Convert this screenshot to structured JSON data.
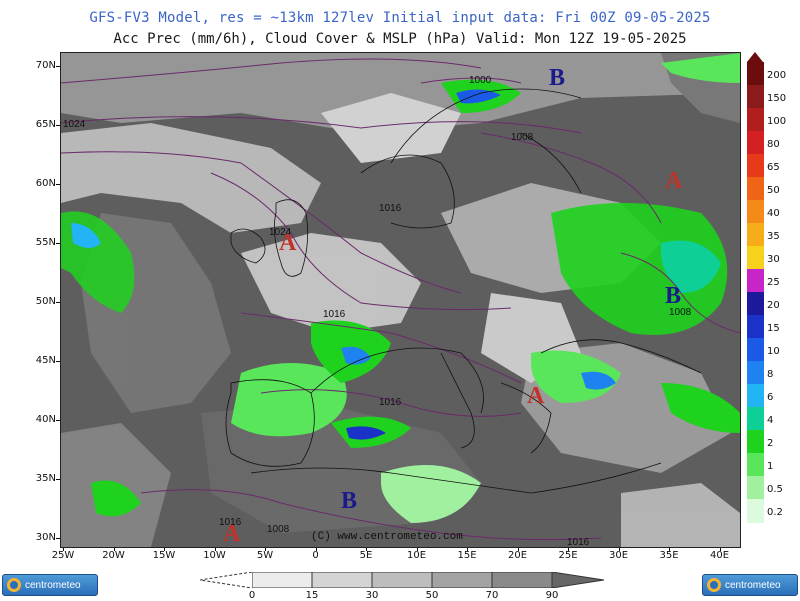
{
  "header": {
    "line1": "GFS-FV3 Model, res = ~13km 127lev   Initial input data: Fri 00Z 09-05-2025",
    "line2": "Acc Prec (mm/6h), Cloud Cover & MSLP (hPa)  Valid: Mon 12Z 19-05-2025"
  },
  "map": {
    "lat_labels": [
      "70N",
      "65N",
      "60N",
      "55N",
      "50N",
      "45N",
      "40N",
      "35N",
      "30N"
    ],
    "lon_labels": [
      "25W",
      "20W",
      "15W",
      "10W",
      "5W",
      "0",
      "5E",
      "10E",
      "15E",
      "20E",
      "25E",
      "30E",
      "35E",
      "40E"
    ],
    "isobar_labels": [
      "1000",
      "1008",
      "1016",
      "1024",
      "1016",
      "1016",
      "1008",
      "1016",
      "1008",
      "1016"
    ],
    "pressure_centers": [
      {
        "letter": "B",
        "color": "#1a1a8c",
        "kind": "low"
      },
      {
        "letter": "A",
        "color": "#c0322a",
        "kind": "high"
      },
      {
        "letter": "A",
        "color": "#c0322a",
        "kind": "high"
      },
      {
        "letter": "B",
        "color": "#1a1a8c",
        "kind": "low"
      },
      {
        "letter": "A",
        "color": "#c0322a",
        "kind": "high"
      },
      {
        "letter": "B",
        "color": "#1a1a8c",
        "kind": "low"
      },
      {
        "letter": "A",
        "color": "#c0322a",
        "kind": "high"
      }
    ],
    "copyright": "(C) www.centrometeo.com"
  },
  "precip_legend": {
    "values": [
      "200",
      "150",
      "100",
      "80",
      "65",
      "50",
      "40",
      "35",
      "30",
      "25",
      "20",
      "15",
      "10",
      "8",
      "6",
      "4",
      "2",
      "1",
      "0.5",
      "0.2"
    ],
    "colors": [
      "#6b0d0d",
      "#8b1a1a",
      "#b01e1e",
      "#d42020",
      "#e83a1a",
      "#f06418",
      "#f58a18",
      "#f7ad1a",
      "#f7d21a",
      "#c825c8",
      "#1a1a9a",
      "#1a32c8",
      "#1a5ae6",
      "#1e82f0",
      "#22b4f5",
      "#0ecf96",
      "#1ed21e",
      "#5ae65a",
      "#a0f0a0",
      "#dcfadc"
    ]
  },
  "cloud_legend": {
    "values": [
      "0",
      "15",
      "30",
      "50",
      "70",
      "90"
    ],
    "colors": [
      "#ececec",
      "#d4d4d4",
      "#bdbdbd",
      "#a3a3a3",
      "#8a8a8a"
    ]
  },
  "logos": {
    "left": "centrometeo",
    "right": "centrometeo"
  }
}
